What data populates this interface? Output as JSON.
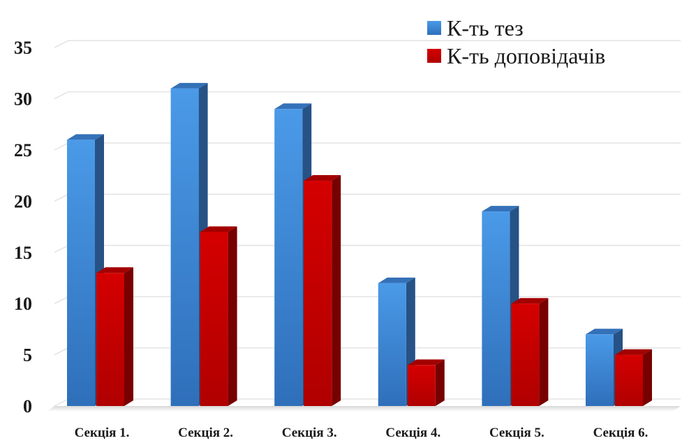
{
  "chart_data": {
    "type": "bar",
    "title": "",
    "xlabel": "",
    "ylabel": "",
    "categories": [
      "Секція 1.",
      "Секція 2.",
      "Секція 3.",
      "Секція 4.",
      "Секція 5.",
      "Секція 6."
    ],
    "series": [
      {
        "name": "К-ть тез",
        "values": [
          26,
          31,
          29,
          12,
          19,
          7
        ],
        "color": "#3d85d8"
      },
      {
        "name": "К-ть доповідачів",
        "values": [
          13,
          17,
          22,
          4,
          10,
          5
        ],
        "color": "#c00000"
      }
    ],
    "ylim": [
      0,
      35
    ],
    "yticks": [
      "0",
      "5",
      "10",
      "15",
      "20",
      "25",
      "30",
      "35"
    ],
    "grid": true,
    "legend_position": "top-right",
    "style": "3d-column"
  }
}
